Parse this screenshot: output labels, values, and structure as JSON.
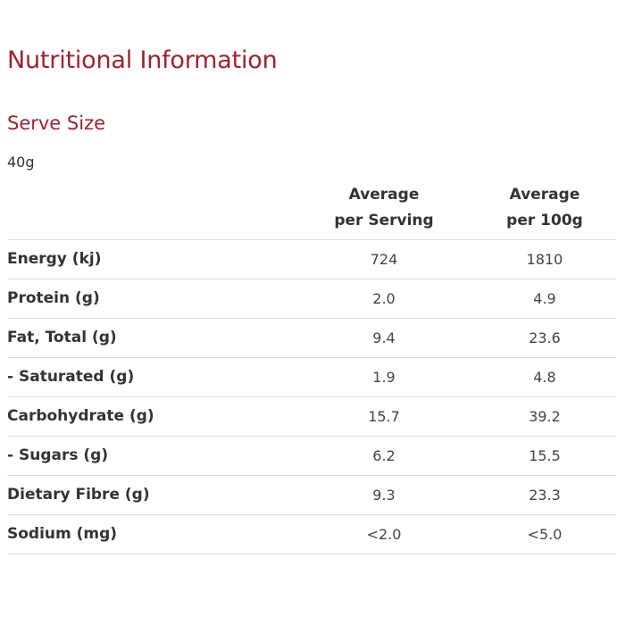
{
  "title": "Nutritional Information",
  "serve": {
    "heading": "Serve Size",
    "value": "40g"
  },
  "table": {
    "headers": [
      [
        "Average",
        "per Serving"
      ],
      [
        "Average",
        "per 100g"
      ]
    ],
    "rows": [
      {
        "label": "Energy (kj)",
        "per_serving": "724",
        "per_100g": "1810"
      },
      {
        "label": "Protein (g)",
        "per_serving": "2.0",
        "per_100g": "4.9"
      },
      {
        "label": "Fat, Total (g)",
        "per_serving": "9.4",
        "per_100g": "23.6"
      },
      {
        "label": "- Saturated (g)",
        "per_serving": "1.9",
        "per_100g": "4.8"
      },
      {
        "label": "Carbohydrate (g)",
        "per_serving": "15.7",
        "per_100g": "39.2"
      },
      {
        "label": "- Sugars (g)",
        "per_serving": "6.2",
        "per_100g": "15.5"
      },
      {
        "label": "Dietary Fibre (g)",
        "per_serving": "9.3",
        "per_100g": "23.3"
      },
      {
        "label": "Sodium (mg)",
        "per_serving": "<2.0",
        "per_100g": "<5.0"
      }
    ]
  },
  "colors": {
    "heading": "#9b2430",
    "text": "#333333",
    "rule": "#dddddd"
  }
}
